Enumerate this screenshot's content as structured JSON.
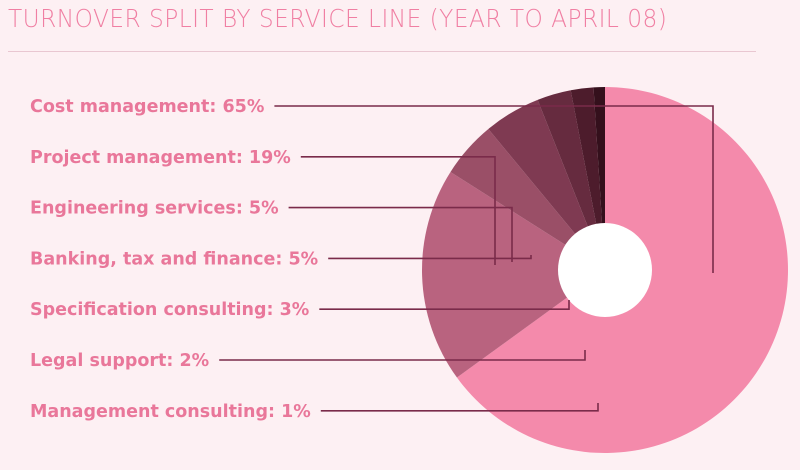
{
  "chart_data": {
    "type": "pie",
    "title": "TURNOVER SPLIT BY SERVICE LINE (YEAR TO APRIL 08)",
    "series": [
      {
        "name": "Cost management",
        "value": 65,
        "label": "Cost management: 65%",
        "color": "#f48aab"
      },
      {
        "name": "Project management",
        "value": 19,
        "label": "Project management: 19%",
        "color": "#b9637f"
      },
      {
        "name": "Engineering services",
        "value": 5,
        "label": "Engineering services: 5%",
        "color": "#9a4f67"
      },
      {
        "name": "Banking, tax and finance",
        "value": 5,
        "label": "Banking, tax and finance: 5%",
        "color": "#7f3a52"
      },
      {
        "name": "Specification consulting",
        "value": 3,
        "label": "Specification consulting: 3%",
        "color": "#662b3f"
      },
      {
        "name": "Legal support",
        "value": 2,
        "label": "Legal support: 2%",
        "color": "#4d1c2c"
      },
      {
        "name": "Management consulting",
        "value": 1,
        "label": "Management consulting: 1%",
        "color": "#34101c"
      }
    ],
    "leader_color": "#7a2b4a",
    "hole_color": "#ffffff"
  }
}
